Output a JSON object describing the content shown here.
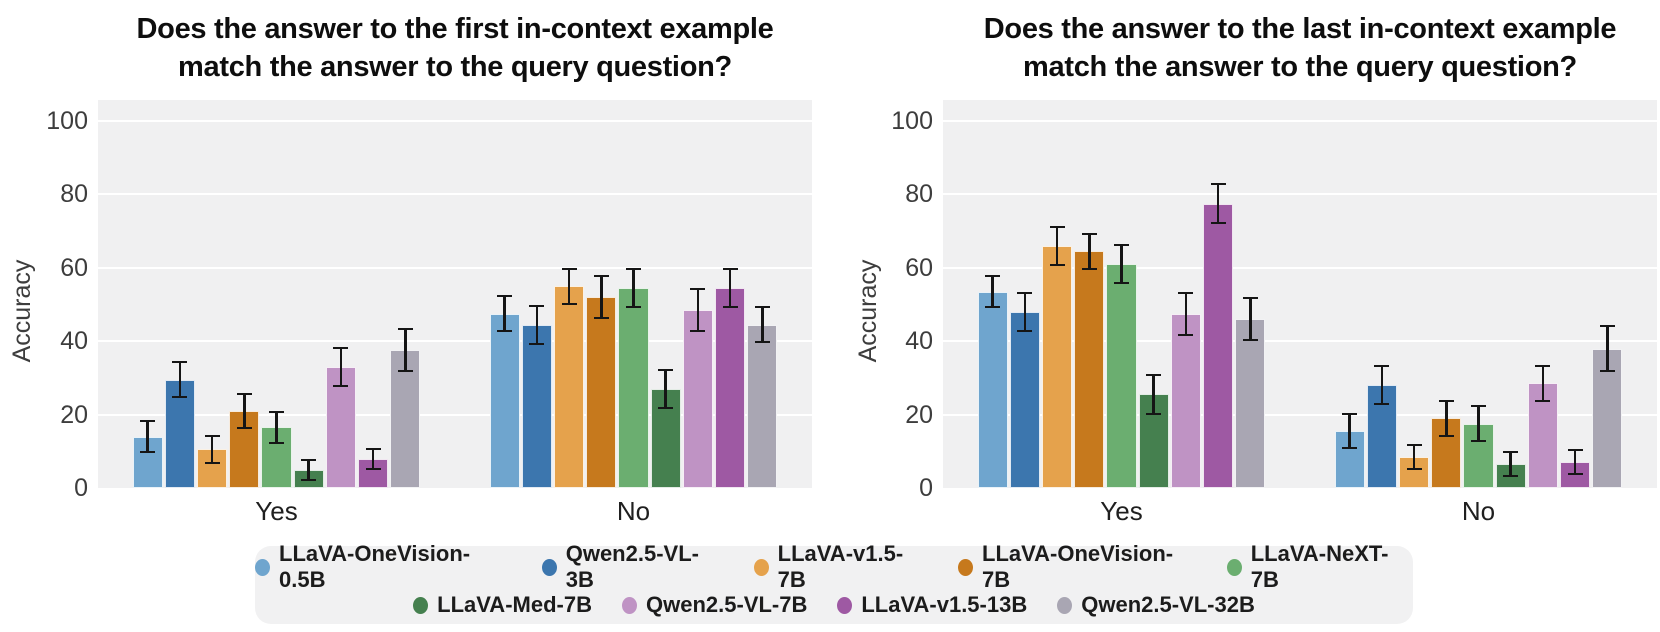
{
  "figure": {
    "background": "#ffffff",
    "plot_background": "#f0f0f1",
    "grid_color": "#ffffff",
    "error_bar_color": "#151515",
    "legend_background": "#f1f1f2"
  },
  "legend": {
    "row_split": 5
  },
  "chart_data": [
    {
      "type": "bar",
      "title_lines": [
        "Does the answer to the first in-context example",
        "match the answer to the query question?"
      ],
      "ylabel": "Accuracy",
      "ylim": [
        0,
        100
      ],
      "yticks": [
        0,
        20,
        40,
        60,
        80,
        100
      ],
      "grid": true,
      "categories": [
        "Yes",
        "No"
      ],
      "series": [
        {
          "name": "LLaVA-OneVision-0.5B",
          "color": "#6FA5CE",
          "values": [
            14,
            47.5
          ],
          "errors": [
            4.5,
            5
          ]
        },
        {
          "name": "Qwen2.5-VL-3B",
          "color": "#3C76AE",
          "values": [
            29.5,
            44.5
          ],
          "errors": [
            5,
            5.5
          ]
        },
        {
          "name": "LLaVA-v1.5-7B",
          "color": "#E5A24C",
          "values": [
            10.5,
            55
          ],
          "errors": [
            4,
            5
          ]
        },
        {
          "name": "LLaVA-OneVision-7B",
          "color": "#C6791D",
          "values": [
            21,
            52
          ],
          "errors": [
            5,
            6
          ]
        },
        {
          "name": "LLaVA-NeXT-7B",
          "color": "#6BAE70",
          "values": [
            16.5,
            54.5
          ],
          "errors": [
            4.5,
            5.5
          ]
        },
        {
          "name": "LLaVA-Med-7B",
          "color": "#45804F",
          "values": [
            5,
            27
          ],
          "errors": [
            3,
            5.5
          ]
        },
        {
          "name": "Qwen2.5-VL-7B",
          "color": "#BF93C4",
          "values": [
            33,
            48.5
          ],
          "errors": [
            5.5,
            6
          ]
        },
        {
          "name": "LLaVA-v1.5-13B",
          "color": "#9E59A3",
          "values": [
            8,
            54.5
          ],
          "errors": [
            3,
            5.5
          ]
        },
        {
          "name": "Qwen2.5-VL-32B",
          "color": "#A9A6B3",
          "values": [
            37.5,
            44.5
          ],
          "errors": [
            6,
            5
          ]
        }
      ]
    },
    {
      "type": "bar",
      "title_lines": [
        "Does the answer to the last in-context example",
        "match the answer to the query question?"
      ],
      "ylabel": "Accuracy",
      "ylim": [
        0,
        100
      ],
      "yticks": [
        0,
        20,
        40,
        60,
        80,
        100
      ],
      "grid": true,
      "categories": [
        "Yes",
        "No"
      ],
      "series": [
        {
          "name": "LLaVA-OneVision-0.5B",
          "color": "#6FA5CE",
          "values": [
            53.5,
            15.5
          ],
          "errors": [
            4.5,
            5
          ]
        },
        {
          "name": "Qwen2.5-VL-3B",
          "color": "#3C76AE",
          "values": [
            48,
            28
          ],
          "errors": [
            5.5,
            5.5
          ]
        },
        {
          "name": "LLaVA-v1.5-7B",
          "color": "#E5A24C",
          "values": [
            66,
            8.5
          ],
          "errors": [
            5.5,
            3.5
          ]
        },
        {
          "name": "LLaVA-OneVision-7B",
          "color": "#C6791D",
          "values": [
            64.5,
            19
          ],
          "errors": [
            5,
            5
          ]
        },
        {
          "name": "LLaVA-NeXT-7B",
          "color": "#6BAE70",
          "values": [
            61,
            17.5
          ],
          "errors": [
            5.5,
            5
          ]
        },
        {
          "name": "LLaVA-Med-7B",
          "color": "#45804F",
          "values": [
            25.5,
            6.5
          ],
          "errors": [
            5.5,
            3.5
          ]
        },
        {
          "name": "Qwen2.5-VL-7B",
          "color": "#BF93C4",
          "values": [
            47.5,
            28.5
          ],
          "errors": [
            6,
            5
          ]
        },
        {
          "name": "LLaVA-v1.5-13B",
          "color": "#9E59A3",
          "values": [
            77.5,
            7
          ],
          "errors": [
            5.5,
            3.5
          ]
        },
        {
          "name": "Qwen2.5-VL-32B",
          "color": "#A9A6B3",
          "values": [
            46,
            38
          ],
          "errors": [
            6,
            6.5
          ]
        }
      ]
    }
  ]
}
